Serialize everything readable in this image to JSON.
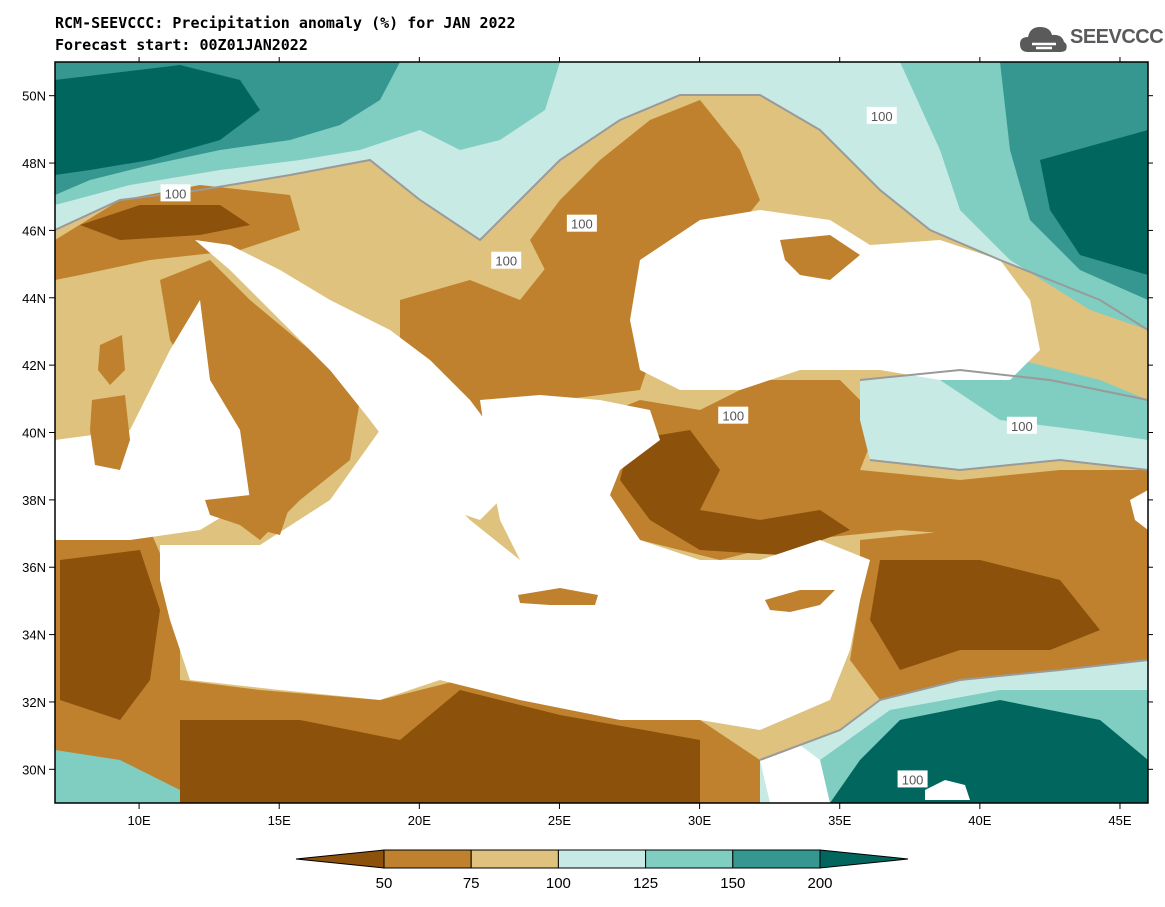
{
  "header": {
    "title": "RCM-SEEVCCC: Precipitation anomaly (%) for JAN 2022",
    "subtitle": "Forecast start: 00Z01JAN2022",
    "logo_text": "SEEVCCC"
  },
  "map": {
    "lon_range": [
      7,
      46
    ],
    "lat_range": [
      29,
      51
    ],
    "x_ticks": [
      "10E",
      "15E",
      "20E",
      "25E",
      "30E",
      "35E",
      "40E",
      "45E"
    ],
    "y_ticks": [
      "50N",
      "48N",
      "46N",
      "44N",
      "42N",
      "40N",
      "38N",
      "36N",
      "34N",
      "32N",
      "30N"
    ],
    "contour_labels": [
      "100",
      "100",
      "100",
      "100",
      "100",
      "100",
      "100"
    ],
    "colors": {
      "sea": "#ffffff",
      "lt50": "#8c510a",
      "50_75": "#bf812d",
      "75_100": "#dfc27d",
      "100_125": "#c7eae5",
      "125_150": "#80cdc1",
      "150_200": "#35978f",
      "gt200": "#01665e",
      "contour": "#9a9a9a"
    }
  },
  "legend": {
    "labels": [
      "50",
      "75",
      "100",
      "125",
      "150",
      "200"
    ],
    "colors": [
      "#8c510a",
      "#bf812d",
      "#dfc27d",
      "#c7eae5",
      "#80cdc1",
      "#35978f",
      "#01665e"
    ]
  }
}
